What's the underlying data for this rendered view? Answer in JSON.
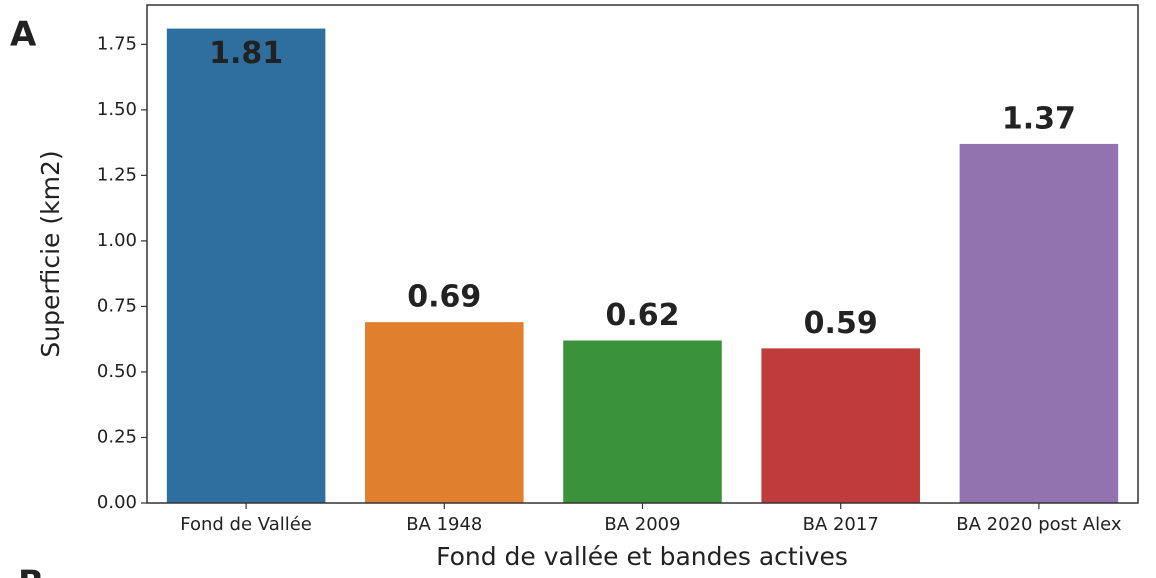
{
  "panel_labels": [
    "A",
    "B"
  ],
  "chart_data": {
    "type": "bar",
    "xlabel": "Fond de vallée et bandes actives",
    "ylabel": "Superficie (km2)",
    "categories": [
      "Fond de Vallée",
      "BA 1948",
      "BA 2009",
      "BA 2017",
      "BA 2020 post Alex"
    ],
    "values": [
      1.81,
      0.69,
      0.62,
      0.59,
      1.37
    ],
    "colors": [
      "#2e6fa0",
      "#e07f2e",
      "#3a923a",
      "#c03c3c",
      "#9273b0"
    ],
    "ylim": [
      0,
      1.9
    ],
    "yticks": [
      {
        "value": 0,
        "label": "0.00"
      },
      {
        "value": 0.25,
        "label": "0.25"
      },
      {
        "value": 0.5,
        "label": "0.50"
      },
      {
        "value": 0.75,
        "label": "0.75"
      },
      {
        "value": 1,
        "label": "1.00"
      },
      {
        "value": 1.25,
        "label": "1.25"
      },
      {
        "value": 1.5,
        "label": "1.50"
      },
      {
        "value": 1.75,
        "label": "1.75"
      }
    ]
  }
}
